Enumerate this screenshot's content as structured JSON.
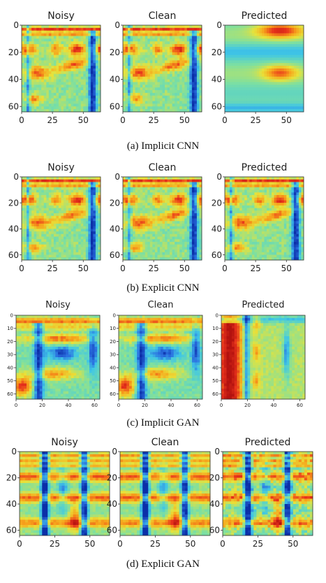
{
  "figure": {
    "rows": [
      {
        "caption": "(a) Implicit CNN",
        "panels": [
          {
            "title": "Noisy",
            "style": "speech"
          },
          {
            "title": "Clean",
            "style": "speech"
          },
          {
            "title": "Predicted",
            "style": "blurred"
          }
        ],
        "x_ticks": [
          "0",
          "25",
          "50"
        ],
        "y_ticks": [
          "0",
          "20",
          "40",
          "60"
        ]
      },
      {
        "caption": "(b) Explicit CNN",
        "panels": [
          {
            "title": "Noisy",
            "style": "speech"
          },
          {
            "title": "Clean",
            "style": "speech"
          },
          {
            "title": "Predicted",
            "style": "speech"
          }
        ],
        "x_ticks": [
          "0",
          "25",
          "50"
        ],
        "y_ticks": [
          "0",
          "20",
          "40",
          "60"
        ]
      },
      {
        "caption": "(c) Implicit GAN",
        "panels": [
          {
            "title": "Noisy",
            "style": "gan"
          },
          {
            "title": "Clean",
            "style": "gan"
          },
          {
            "title": "Predicted",
            "style": "vertical"
          }
        ],
        "x_ticks": [
          "0",
          "20",
          "40",
          "60"
        ],
        "y_ticks": [
          "0",
          "10",
          "20",
          "30",
          "40",
          "50",
          "60"
        ]
      },
      {
        "caption": "(d) Explicit GAN",
        "panels": [
          {
            "title": "Noisy",
            "style": "stripes"
          },
          {
            "title": "Clean",
            "style": "stripes"
          },
          {
            "title": "Predicted",
            "style": "stripes-noisy"
          }
        ],
        "x_ticks": [
          "0",
          "25",
          "50"
        ],
        "y_ticks": [
          "0",
          "20",
          "40",
          "60"
        ]
      }
    ],
    "colors": {
      "dark_red": "#b3120f",
      "red": "#e8321c",
      "orange": "#f7a21b",
      "yellow": "#e8e23a",
      "green_cyan": "#7ee0a0",
      "cyan": "#3fc6e6",
      "blue": "#2a6fe0",
      "dark_blue": "#0b2fa8"
    }
  }
}
